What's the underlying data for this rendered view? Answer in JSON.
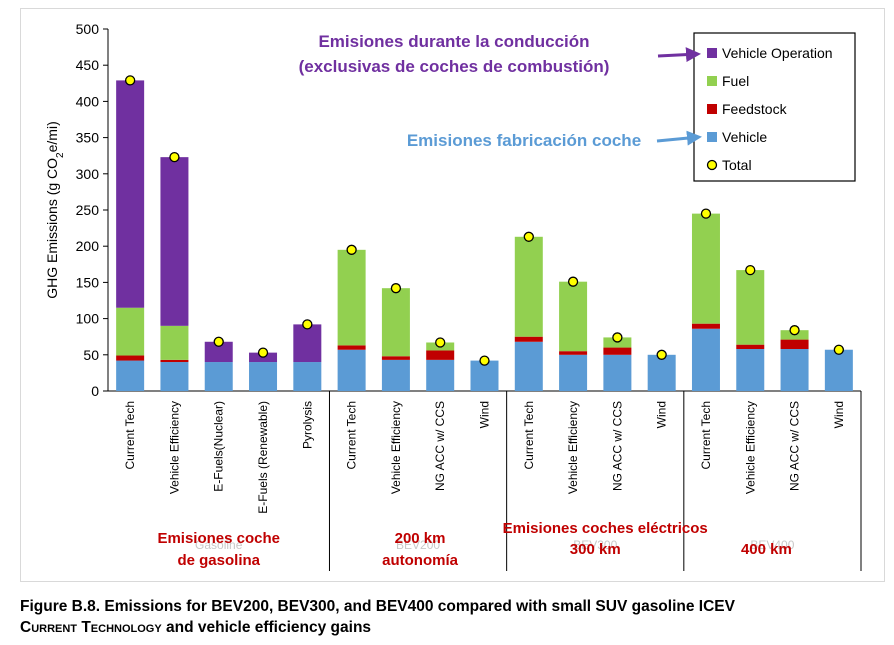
{
  "chart_data": {
    "type": "bar",
    "stacked": true,
    "ylabel": "GHG Emissions (g CO2e/mi)",
    "ylim": [
      0,
      500
    ],
    "yticks": [
      0,
      50,
      100,
      150,
      200,
      250,
      300,
      350,
      400,
      450,
      500
    ],
    "grid": false,
    "legend_position": "top-right",
    "colors": {
      "Vehicle Operation": "#7030a0",
      "Fuel": "#92d050",
      "Feedstock": "#c00000",
      "Vehicle": "#5b9bd5",
      "Total": "#ffff00"
    },
    "legend": [
      "Vehicle Operation",
      "Fuel",
      "Feedstock",
      "Vehicle",
      "Total"
    ],
    "categories": [
      "Current Tech",
      "Vehicle Efficiency",
      "E-Fuels(Nuclear)",
      "E-Fuels (Renewable)",
      "Pyrolysis",
      "Current Tech",
      "Vehicle Efficiency",
      "NG ACC w/ CCS",
      "Wind",
      "Current Tech",
      "Vehicle Efficiency",
      "NG ACC w/ CCS",
      "Wind",
      "Current Tech",
      "Vehicle Efficiency",
      "NG ACC w/ CCS",
      "Wind"
    ],
    "groups": [
      {
        "name": "Gasoline",
        "start": 0,
        "end": 5
      },
      {
        "name": "BEV200",
        "start": 5,
        "end": 9
      },
      {
        "name": "BEV300",
        "start": 9,
        "end": 13
      },
      {
        "name": "BEV400",
        "start": 13,
        "end": 17
      }
    ],
    "series": [
      {
        "name": "Vehicle",
        "values": [
          42,
          40,
          40,
          40,
          40,
          57,
          43,
          43,
          42,
          68,
          50,
          50,
          50,
          86,
          58,
          58,
          57
        ]
      },
      {
        "name": "Feedstock",
        "values": [
          7,
          3,
          0,
          0,
          0,
          6,
          5,
          13,
          0,
          7,
          5,
          10,
          0,
          7,
          6,
          13,
          0
        ]
      },
      {
        "name": "Fuel",
        "values": [
          66,
          47,
          0,
          0,
          0,
          132,
          94,
          11,
          0,
          138,
          96,
          14,
          0,
          152,
          103,
          13,
          0
        ]
      },
      {
        "name": "Vehicle Operation",
        "values": [
          314,
          233,
          28,
          13,
          52,
          0,
          0,
          0,
          0,
          0,
          0,
          0,
          0,
          0,
          0,
          0,
          0
        ]
      }
    ],
    "totals": [
      429,
      323,
      68,
      53,
      92,
      195,
      142,
      67,
      42,
      213,
      151,
      74,
      50,
      245,
      167,
      84,
      57
    ]
  },
  "annotations": {
    "operation_line1": "Emisiones durante la conducción",
    "operation_line2": "(exclusivas de coches de combustión)",
    "manufacturing": "Emisiones fabricación coche",
    "gasoline_line1": "Emisiones coche",
    "gasoline_line2": "de gasolina",
    "bev200_line1": "200 km",
    "bev200_line2": "autonomía",
    "electric": "Emisiones coches eléctricos",
    "bev300": "300 km",
    "bev400": "400 km"
  },
  "caption": {
    "line1": "Figure B.8. Emissions for BEV200, BEV300, and BEV400 compared with small SUV gasoline ICEV",
    "line2_smallcaps": "Current Technology",
    "line2_rest": " and vehicle efficiency gains"
  }
}
